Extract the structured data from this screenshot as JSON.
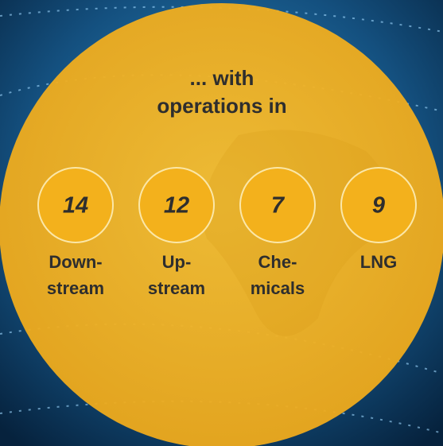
{
  "heading": [
    "... with",
    "operations in"
  ],
  "items": [
    {
      "value": "14",
      "label": [
        "Down-",
        "stream"
      ]
    },
    {
      "value": "12",
      "label": [
        "Up-",
        "stream"
      ]
    },
    {
      "value": "7",
      "label": [
        "Che-",
        "micals"
      ]
    },
    {
      "value": "9",
      "label": [
        "LNG"
      ]
    }
  ]
}
